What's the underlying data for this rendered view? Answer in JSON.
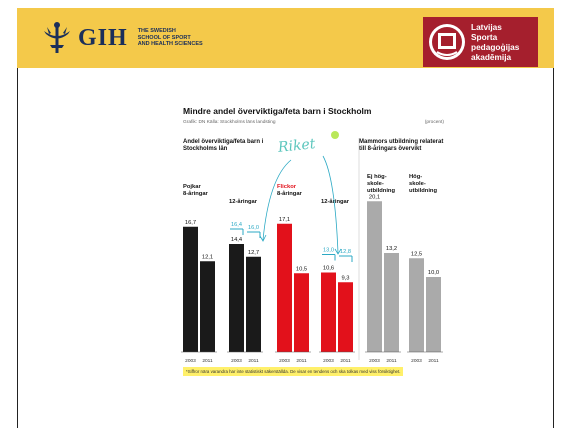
{
  "header": {
    "left_logo_text": "GIH",
    "left_logo_sub": [
      "THE SWEDISH",
      "SCHOOL OF SPORT",
      "AND HEALTH SCIENCES"
    ],
    "right_logo_lines": [
      "Latvijas",
      "Sporta",
      "pedagoģijas",
      "akadēmija"
    ],
    "band_color": "#f4c94a",
    "right_logo_color": "#a51f2d"
  },
  "chart_data": {
    "type": "bar",
    "title": "Mindre andel överviktiga/feta barn i Stockholm",
    "credit": "Grafik: DN   Källa: Stockholms läns landsting",
    "unit": "(procent)",
    "panel_titles": [
      "Andel överviktiga/feta barn i Stockholms län",
      "Mammors utbildning relaterat till 8-åringars övervikt"
    ],
    "annotation": "Riket",
    "footnote": "*Siffror nära varandra har inte statistiskt säkerställda. De visar en tendens och ska tolkas med viss försiktighet.",
    "categories": [
      "2003",
      "2011"
    ],
    "groups": [
      {
        "label": [
          "Pojkar",
          "8-åringar"
        ],
        "color": "#1a1a1a",
        "values": [
          16.7,
          12.1
        ],
        "labels": [
          "16,7",
          "12,1"
        ]
      },
      {
        "label": [
          "12-åringar"
        ],
        "color": "#1a1a1a",
        "values": [
          14.4,
          12.7
        ],
        "labels": [
          "14,4",
          "12,7"
        ],
        "riket": [
          "16,4",
          "16,0"
        ],
        "riket_values": [
          16.4,
          16.0
        ]
      },
      {
        "label": [
          "Flickor",
          "8-åringar"
        ],
        "color": "#e2111b",
        "values": [
          17.1,
          10.5
        ],
        "labels": [
          "17,1",
          "10,5"
        ]
      },
      {
        "label": [
          "12-åringar"
        ],
        "color": "#e2111b",
        "values": [
          10.6,
          9.3
        ],
        "labels": [
          "10,6",
          "9,3"
        ],
        "riket": [
          "13,0",
          "12,8"
        ],
        "riket_values": [
          13.0,
          12.8
        ]
      },
      {
        "label": [
          "Ej hög-",
          "skole-",
          "utbildning"
        ],
        "color": "#aaaaaa",
        "values": [
          20.1,
          13.2
        ],
        "labels": [
          "20,1",
          "13,2"
        ]
      },
      {
        "label": [
          "Hög-",
          "skole-",
          "utbildning"
        ],
        "color": "#aaaaaa",
        "values": [
          12.5,
          10.0
        ],
        "labels": [
          "12,5",
          "10,0"
        ]
      }
    ],
    "riket_color": "#2ba9c4",
    "ylim": [
      0,
      22
    ]
  }
}
